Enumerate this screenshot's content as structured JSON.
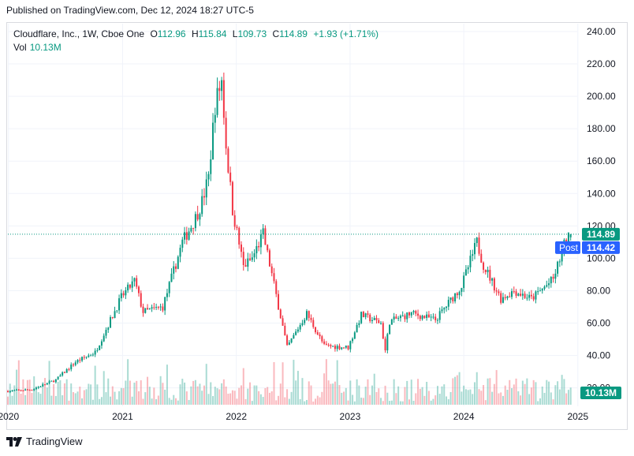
{
  "published": "Published on TradingView.com, Dec 12, 2024 18:27 UTC-5",
  "legend": {
    "symbol": "Cloudflare, Inc., 1W, Cboe One",
    "o_label": "O",
    "o": "112.96",
    "h_label": "H",
    "h": "115.84",
    "l_label": "L",
    "l": "109.73",
    "c_label": "C",
    "c": "114.89",
    "change": "+1.93 (+1.71%)",
    "vol_label": "Vol",
    "vol": "10.13M"
  },
  "badges": {
    "last": "114.89",
    "post_label": "Post",
    "post": "114.42",
    "volume": "10.13M"
  },
  "footer": {
    "brand": "TradingView"
  },
  "colors": {
    "up": "#089981",
    "down": "#f23645",
    "post": "#2962ff",
    "grid": "#f0f3fa",
    "text": "#131722"
  },
  "chart_data": {
    "type": "candlestick",
    "interval": "1W",
    "y_axis": {
      "range": [
        10,
        245
      ],
      "ticks": [
        20,
        40,
        60,
        80,
        100,
        120,
        140,
        160,
        180,
        200,
        220,
        240
      ],
      "tick_labels": [
        "20.00",
        "40.00",
        "60.00",
        "80.00",
        "100.00",
        "120.00",
        "140.00",
        "160.00",
        "180.00",
        "200.00",
        "220.00",
        "240.00"
      ],
      "position": "right"
    },
    "x_axis": {
      "range": [
        "2019-12-30",
        "2024-12-30"
      ],
      "ticks": [
        "2020",
        "2021",
        "2022",
        "2023",
        "2024",
        "2025"
      ]
    },
    "last_price": 114.89,
    "post_price": 114.42,
    "price_path": [
      [
        "2019-12-30",
        18
      ],
      [
        "2020-03-16",
        19
      ],
      [
        "2020-06-01",
        25
      ],
      [
        "2020-08-03",
        36
      ],
      [
        "2020-10-05",
        42
      ],
      [
        "2020-12-28",
        76
      ],
      [
        "2021-02-08",
        86
      ],
      [
        "2021-03-08",
        67
      ],
      [
        "2021-05-10",
        70
      ],
      [
        "2021-07-12",
        110
      ],
      [
        "2021-08-23",
        125
      ],
      [
        "2021-09-13",
        135
      ],
      [
        "2021-10-04",
        150
      ],
      [
        "2021-10-25",
        195
      ],
      [
        "2021-11-15",
        210
      ],
      [
        "2021-11-29",
        170
      ],
      [
        "2021-12-20",
        130
      ],
      [
        "2022-01-24",
        95
      ],
      [
        "2022-02-21",
        100
      ],
      [
        "2022-03-28",
        115
      ],
      [
        "2022-04-25",
        90
      ],
      [
        "2022-06-13",
        45
      ],
      [
        "2022-08-15",
        66
      ],
      [
        "2022-10-10",
        46
      ],
      [
        "2022-12-26",
        45
      ],
      [
        "2023-02-06",
        65
      ],
      [
        "2023-04-10",
        60
      ],
      [
        "2023-04-24",
        43
      ],
      [
        "2023-05-08",
        61
      ],
      [
        "2023-07-17",
        66
      ],
      [
        "2023-10-02",
        62
      ],
      [
        "2023-12-25",
        83
      ],
      [
        "2024-02-12",
        110
      ],
      [
        "2024-03-04",
        96
      ],
      [
        "2024-04-29",
        75
      ],
      [
        "2024-06-10",
        80
      ],
      [
        "2024-08-05",
        75
      ],
      [
        "2024-10-14",
        87
      ],
      [
        "2024-11-18",
        108
      ],
      [
        "2024-12-09",
        114.89
      ]
    ],
    "volume_last": "10.13M"
  }
}
